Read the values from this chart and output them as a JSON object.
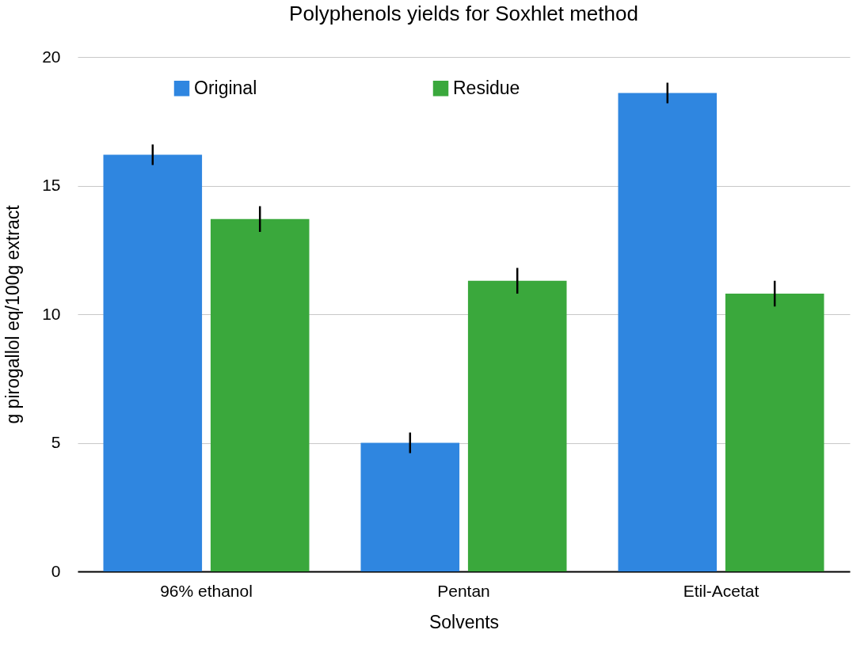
{
  "chart_data": {
    "type": "bar",
    "title": "Polyphenols yields for Soxhlet method",
    "xlabel": "Solvents",
    "ylabel": "g pirogallol eq/100g extract",
    "categories": [
      "96% ethanol",
      "Pentan",
      "Etil-Acetat"
    ],
    "series": [
      {
        "name": "Original",
        "color": "#2f86e0",
        "values": [
          16.2,
          5.0,
          18.6
        ],
        "errors": [
          0.4,
          0.4,
          0.4
        ]
      },
      {
        "name": "Residue",
        "color": "#3aa83c",
        "values": [
          13.7,
          11.3,
          10.8
        ],
        "errors": [
          0.5,
          0.5,
          0.5
        ]
      }
    ],
    "ylim": [
      0,
      20
    ],
    "yticks": [
      0,
      5,
      10,
      15,
      20
    ],
    "grid": "y",
    "legend": "top"
  }
}
